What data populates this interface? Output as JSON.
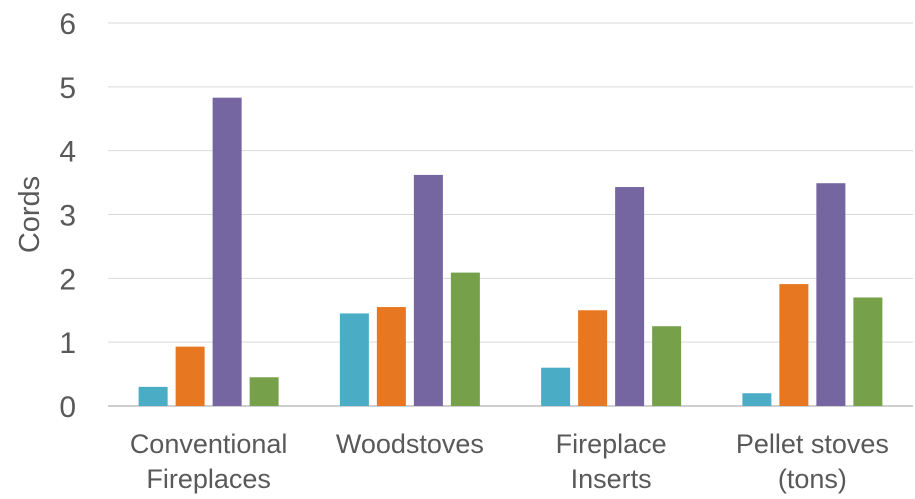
{
  "chart_data": {
    "type": "bar",
    "title": "",
    "xlabel": "",
    "ylabel": "Cords",
    "ylim": [
      0,
      6
    ],
    "yticks": [
      0,
      1,
      2,
      3,
      4,
      5,
      6
    ],
    "grid": true,
    "legend": "none",
    "categories": [
      [
        "Conventional",
        "Fireplaces"
      ],
      [
        "Woodstoves"
      ],
      [
        "Fireplace",
        "Inserts"
      ],
      [
        "Pellet stoves",
        "(tons)"
      ]
    ],
    "series": [
      {
        "color": "#4bacc6",
        "values": [
          0.3,
          1.45,
          0.6,
          0.2
        ]
      },
      {
        "color": "#e87722",
        "values": [
          0.93,
          1.55,
          1.5,
          1.91
        ]
      },
      {
        "color": "#7565a0",
        "values": [
          4.83,
          3.62,
          3.43,
          3.49
        ]
      },
      {
        "color": "#77a04a",
        "values": [
          0.45,
          2.09,
          1.25,
          1.7
        ]
      }
    ]
  }
}
